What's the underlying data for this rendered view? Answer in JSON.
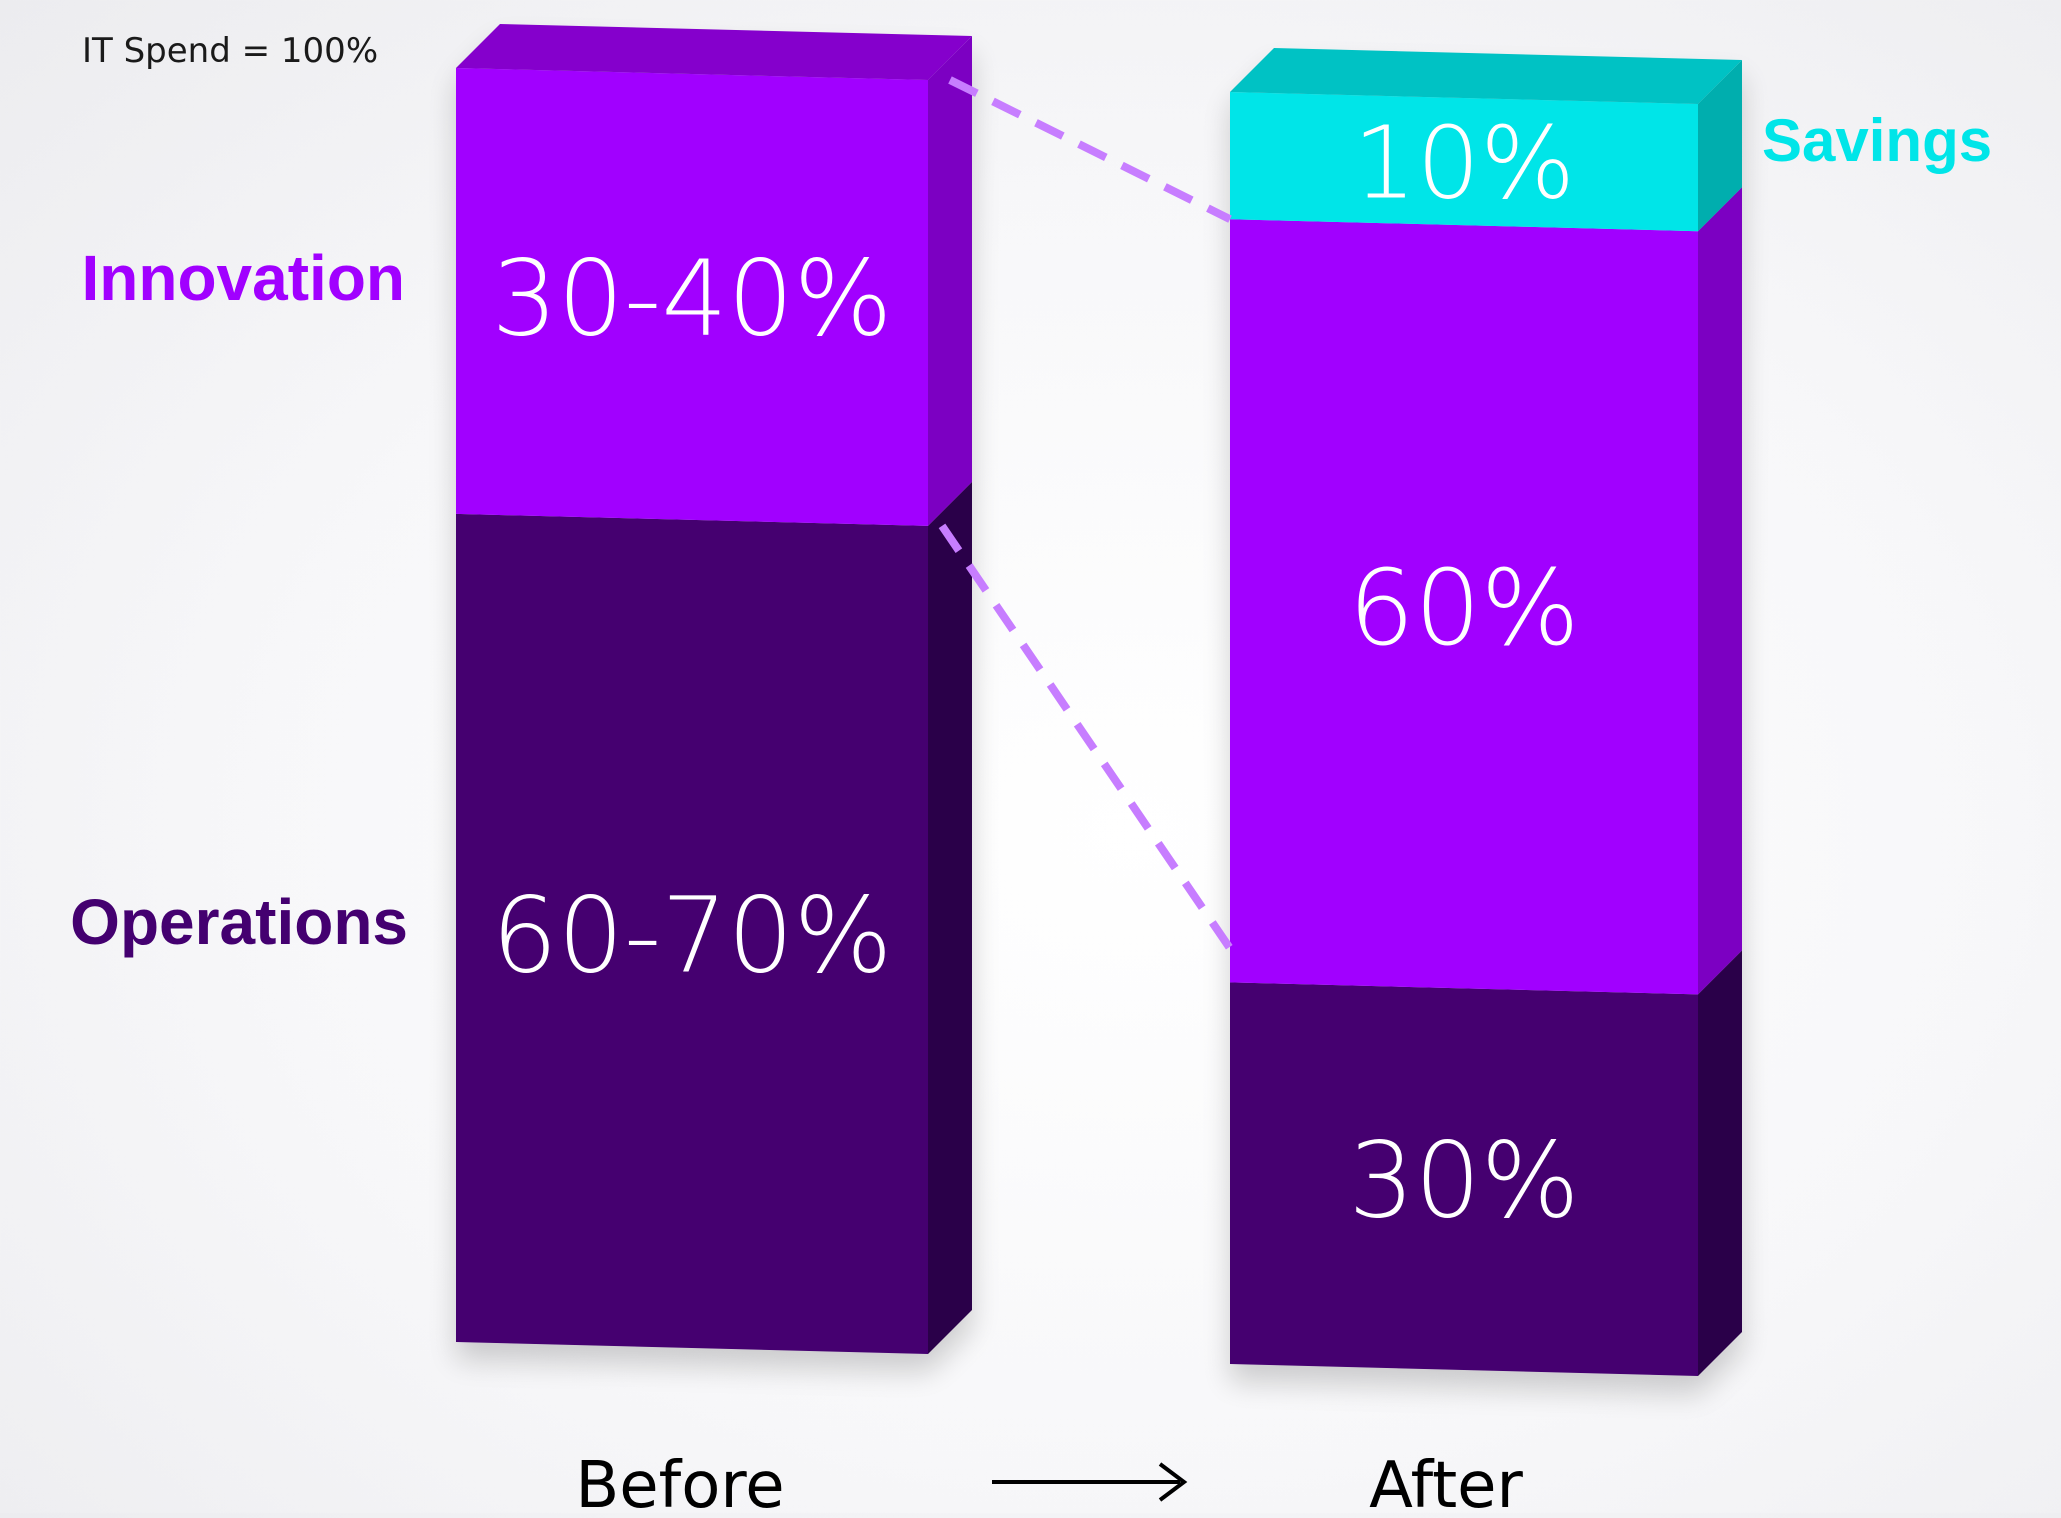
{
  "chart_data": {
    "type": "bar",
    "title": "",
    "note": "IT Spend = 100%",
    "categories": [
      "Before",
      "After"
    ],
    "series": [
      {
        "name": "Operations",
        "values": [
          65,
          30
        ],
        "labels": [
          "60-70%",
          "30%"
        ]
      },
      {
        "name": "Innovation",
        "values": [
          35,
          60
        ],
        "labels": [
          "30-40%",
          "60%"
        ]
      },
      {
        "name": "Savings",
        "values": [
          0,
          10
        ],
        "labels": [
          "",
          "10%"
        ]
      }
    ],
    "ylim": [
      0,
      100
    ],
    "grid": false,
    "legend": "left (Innovation, Operations) and right (Savings)"
  },
  "colors": {
    "operations": "#440070",
    "operations_side": "#2a0248",
    "innovation": "#a100ff",
    "innovation_side": "#7b00c2",
    "innovation_top": "#8500cc",
    "savings": "#00e5e8",
    "savings_side": "#00aeae",
    "savings_top": "#00c2c4",
    "connector": "#c77dff",
    "arrow": "#000000"
  },
  "arrow_icon": "long-right-arrow-icon"
}
